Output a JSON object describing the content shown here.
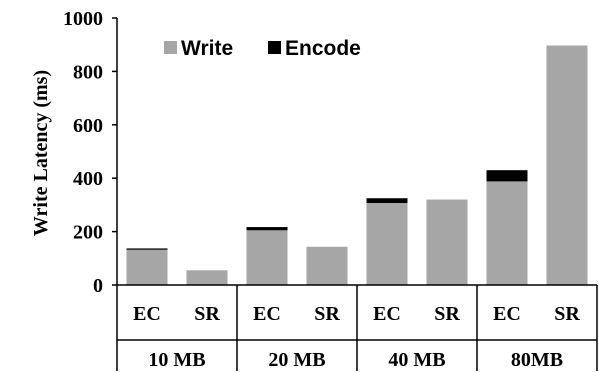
{
  "chart_data": {
    "type": "bar",
    "stacked": true,
    "title": "",
    "xlabel": "",
    "ylabel": "Write Latency (ms)",
    "ylim": [
      0,
      1000
    ],
    "yticks": [
      "0",
      "200",
      "400",
      "600",
      "800",
      "1000"
    ],
    "grid": false,
    "legend_position": "top-left",
    "groups": [
      "10 MB",
      "20 MB",
      "40 MB",
      "80MB"
    ],
    "categories": [
      "EC",
      "SR",
      "EC",
      "SR",
      "EC",
      "SR",
      "EC",
      "SR"
    ],
    "category_group": [
      0,
      0,
      1,
      1,
      2,
      2,
      3,
      3
    ],
    "series": [
      {
        "name": "Write",
        "color": "#a6a6a6",
        "values": [
          132,
          55,
          205,
          143,
          307,
          320,
          388,
          897
        ]
      },
      {
        "name": "Encode",
        "color": "#000000",
        "values": [
          5,
          0,
          12,
          0,
          18,
          0,
          42,
          0
        ]
      }
    ]
  }
}
